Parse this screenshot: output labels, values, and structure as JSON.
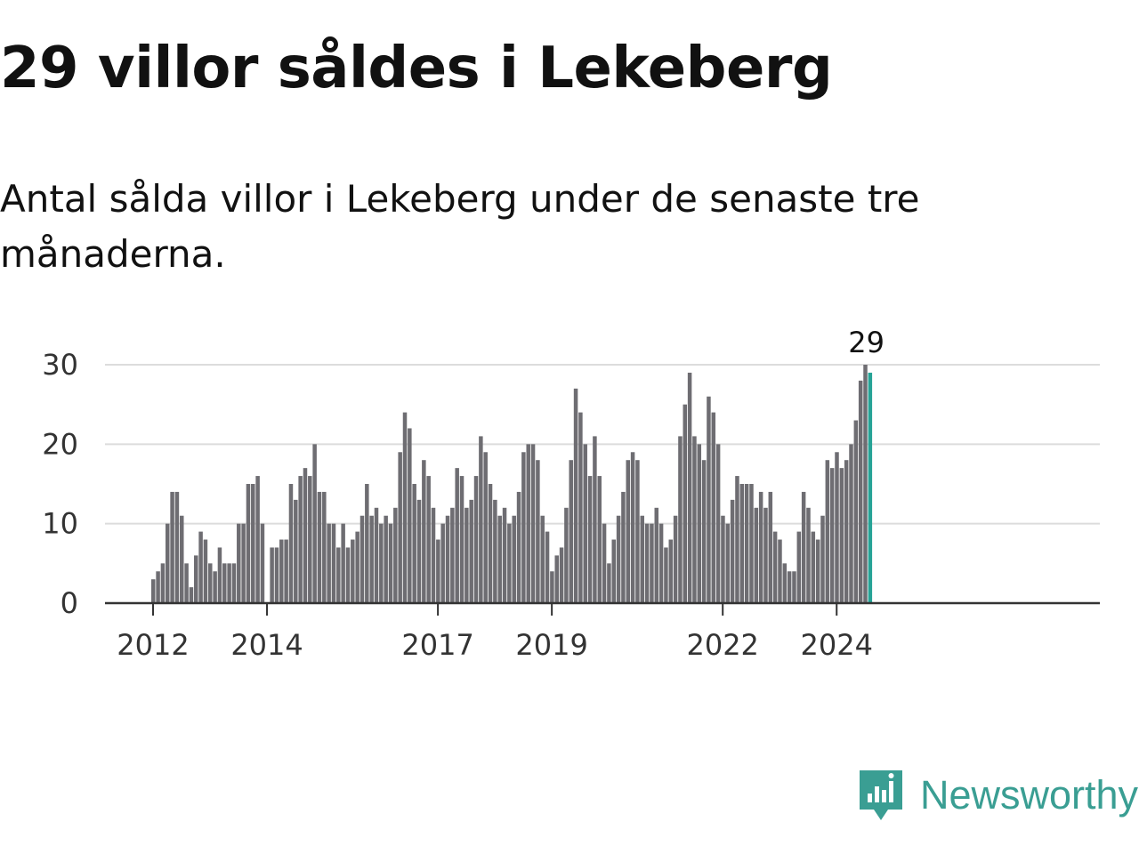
{
  "title": "29 villor såldes i Lekeberg",
  "subtitle": "Antal sålda villor i Lekeberg under de senaste tre månaderna.",
  "brand": {
    "name": "Newsworthy",
    "icon": "newsworthy-logo-icon",
    "color": "#3a9e93"
  },
  "chart_data": {
    "type": "bar",
    "title": "",
    "xlabel": "",
    "ylabel": "",
    "ylim": [
      0,
      30
    ],
    "y_ticks": [
      0,
      10,
      20,
      30
    ],
    "grid": true,
    "x_ticks": [
      "2012",
      "2014",
      "2017",
      "2019",
      "2022",
      "2024"
    ],
    "x_tick_positions": [
      0,
      24,
      60,
      84,
      120,
      144
    ],
    "bar_color": "#6e6d72",
    "highlight_color": "#26a396",
    "highlight_label": "29",
    "series": [
      {
        "values": [
          3,
          4,
          5,
          10,
          14,
          14,
          11,
          5,
          2,
          6,
          9,
          8,
          5,
          4,
          7,
          5,
          5,
          5,
          10,
          10,
          15,
          15,
          16,
          10,
          0,
          7,
          7,
          8,
          8,
          15,
          13,
          16,
          17,
          16,
          20,
          14,
          14,
          10,
          10,
          7,
          10,
          7,
          8,
          9,
          11,
          15,
          11,
          12,
          10,
          11,
          10,
          12,
          19,
          24,
          22,
          15,
          13,
          18,
          16,
          12,
          8,
          10,
          11,
          12,
          17,
          16,
          12,
          13,
          16,
          21,
          19,
          15,
          13,
          11,
          12,
          10,
          11,
          14,
          19,
          20,
          20,
          18,
          11,
          9,
          4,
          6,
          7,
          12,
          18,
          27,
          24,
          20,
          16,
          21,
          16,
          10,
          5,
          8,
          11,
          14,
          18,
          19,
          18,
          11,
          10,
          10,
          12,
          10,
          7,
          8,
          11,
          21,
          25,
          29,
          21,
          20,
          18,
          26,
          24,
          20,
          11,
          10,
          13,
          16,
          15,
          15,
          15,
          12,
          14,
          12,
          14,
          9,
          8,
          5,
          4,
          4,
          9,
          14,
          12,
          9,
          8,
          11,
          18,
          17,
          19,
          17,
          18,
          20,
          23,
          28,
          30,
          29
        ]
      }
    ]
  }
}
